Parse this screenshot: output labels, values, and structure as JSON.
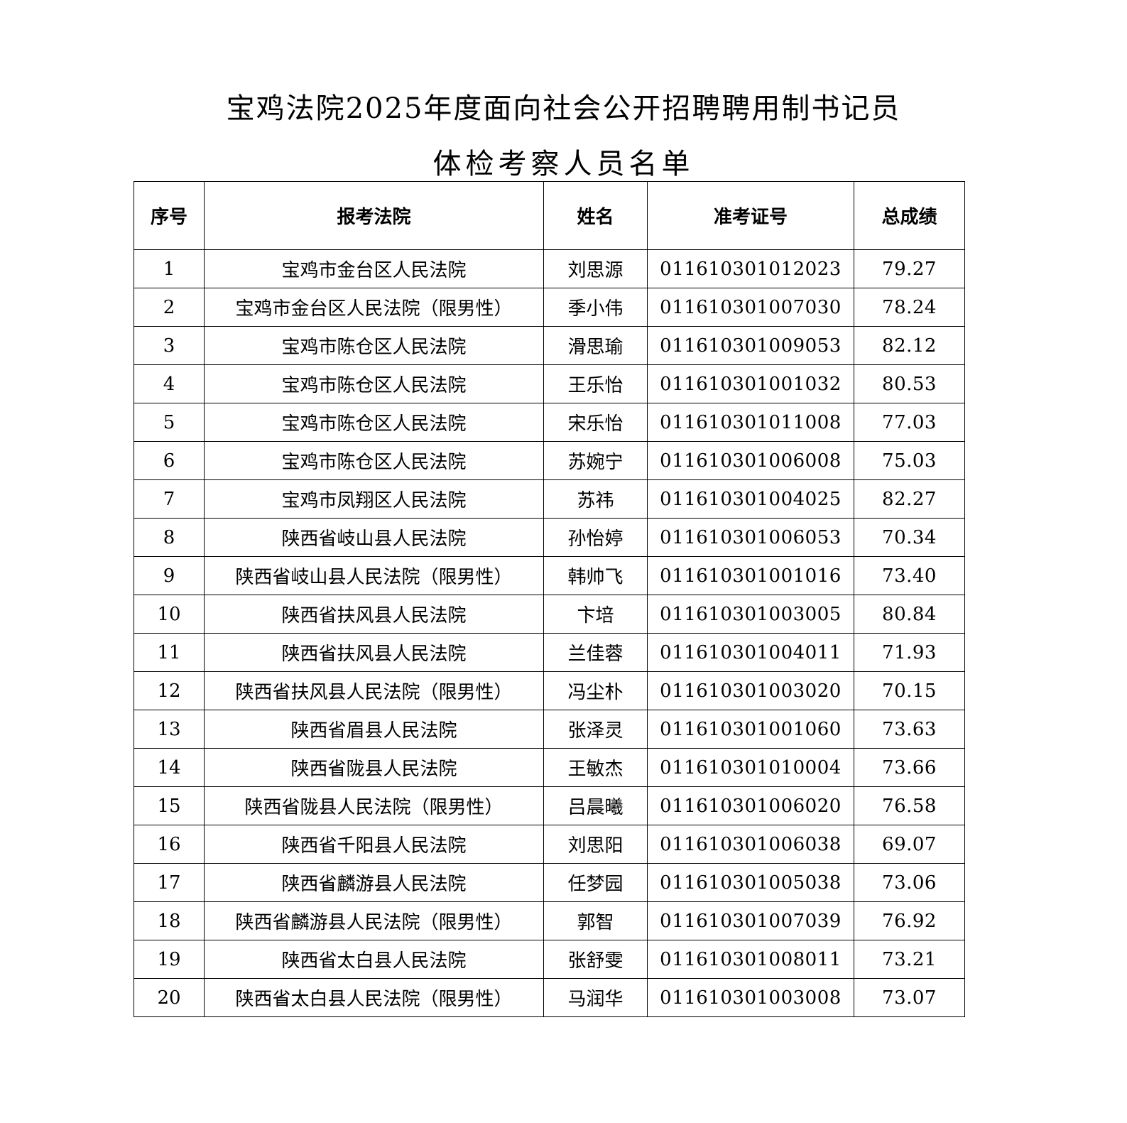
{
  "title_line1": "宝鸡法院2025年度面向社会公开招聘聘用制书记员",
  "title_line2": "体检考察人员名单",
  "table": {
    "headers": [
      "序号",
      "报考法院",
      "姓名",
      "准考证号",
      "总成绩"
    ],
    "rows": [
      [
        "1",
        "宝鸡市金台区人民法院",
        "刘思源",
        "011610301012023",
        "79.27"
      ],
      [
        "2",
        "宝鸡市金台区人民法院（限男性）",
        "季小伟",
        "011610301007030",
        "78.24"
      ],
      [
        "3",
        "宝鸡市陈仓区人民法院",
        "滑思瑜",
        "011610301009053",
        "82.12"
      ],
      [
        "4",
        "宝鸡市陈仓区人民法院",
        "王乐怡",
        "011610301001032",
        "80.53"
      ],
      [
        "5",
        "宝鸡市陈仓区人民法院",
        "宋乐怡",
        "011610301011008",
        "77.03"
      ],
      [
        "6",
        "宝鸡市陈仓区人民法院",
        "苏婉宁",
        "011610301006008",
        "75.03"
      ],
      [
        "7",
        "宝鸡市凤翔区人民法院",
        "苏祎",
        "011610301004025",
        "82.27"
      ],
      [
        "8",
        "陕西省岐山县人民法院",
        "孙怡婷",
        "011610301006053",
        "70.34"
      ],
      [
        "9",
        "陕西省岐山县人民法院（限男性）",
        "韩帅飞",
        "011610301001016",
        "73.40"
      ],
      [
        "10",
        "陕西省扶风县人民法院",
        "卞培",
        "011610301003005",
        "80.84"
      ],
      [
        "11",
        "陕西省扶风县人民法院",
        "兰佳蓉",
        "011610301004011",
        "71.93"
      ],
      [
        "12",
        "陕西省扶风县人民法院（限男性）",
        "冯尘朴",
        "011610301003020",
        "70.15"
      ],
      [
        "13",
        "陕西省眉县人民法院",
        "张泽灵",
        "011610301001060",
        "73.63"
      ],
      [
        "14",
        "陕西省陇县人民法院",
        "王敏杰",
        "011610301010004",
        "73.66"
      ],
      [
        "15",
        "陕西省陇县人民法院（限男性）",
        "吕晨曦",
        "011610301006020",
        "76.58"
      ],
      [
        "16",
        "陕西省千阳县人民法院",
        "刘思阳",
        "011610301006038",
        "69.07"
      ],
      [
        "17",
        "陕西省麟游县人民法院",
        "任梦园",
        "011610301005038",
        "73.06"
      ],
      [
        "18",
        "陕西省麟游县人民法院（限男性）",
        "郭智",
        "011610301007039",
        "76.92"
      ],
      [
        "19",
        "陕西省太白县人民法院",
        "张舒雯",
        "011610301008011",
        "73.21"
      ],
      [
        "20",
        "陕西省太白县人民法院（限男性）",
        "马润华",
        "011610301003008",
        "73.07"
      ]
    ]
  }
}
